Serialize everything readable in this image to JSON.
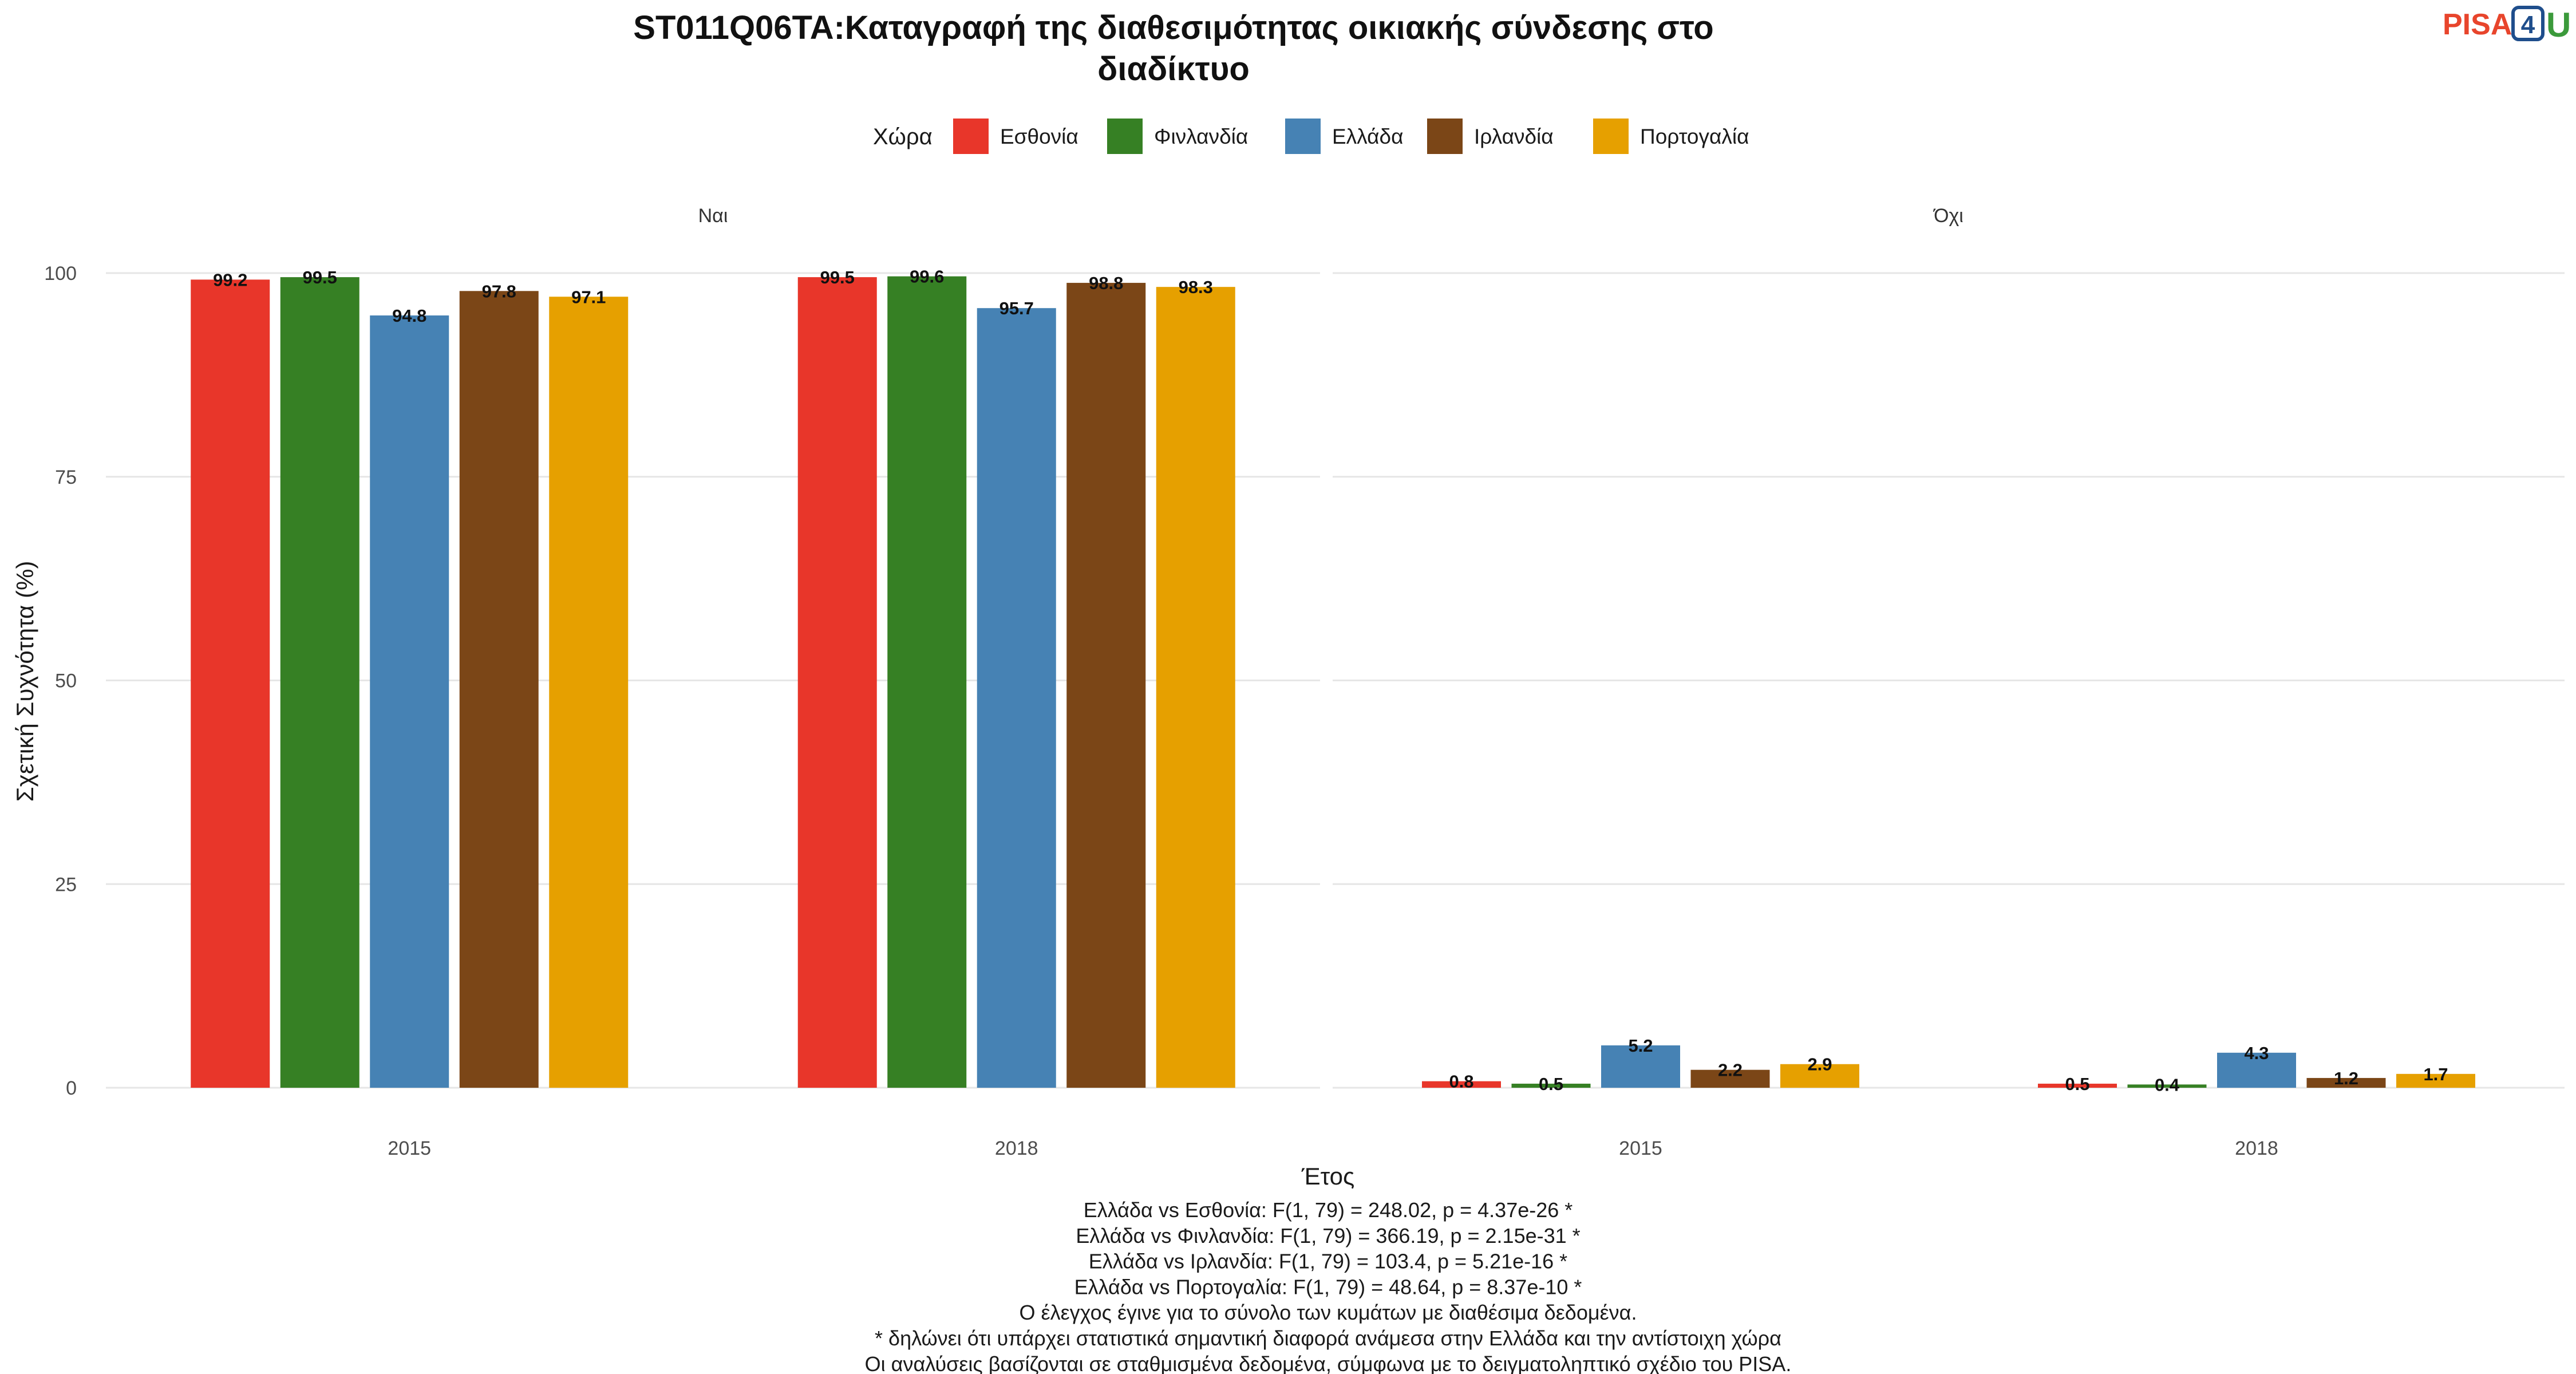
{
  "chart_data": {
    "type": "bar",
    "title_line1": "ST011Q06TA:Καταγραφή της διαθεσιμότητας οικιακής σύνδεσης στο",
    "title_line2": "διαδίκτυο",
    "legend_title": "Χώρα",
    "legend_position": "top",
    "xlabel": "Έτος",
    "ylabel": "Σχετική Συχνότητα (%)",
    "ylim": [
      0,
      100
    ],
    "yticks": [
      "0",
      "25",
      "50",
      "75",
      "100"
    ],
    "grid": true,
    "categories": [
      "2015",
      "2018"
    ],
    "series": [
      {
        "name": "Εσθονία",
        "color": "#e8362a"
      },
      {
        "name": "Φινλανδία",
        "color": "#368024"
      },
      {
        "name": "Ελλάδα",
        "color": "#4682b4"
      },
      {
        "name": "Ιρλανδία",
        "color": "#7b4617"
      },
      {
        "name": "Πορτογαλία",
        "color": "#e6a000"
      }
    ],
    "facets": [
      {
        "label": "Ναι",
        "values": [
          [
            99.2,
            99.5,
            94.8,
            97.8,
            97.1
          ],
          [
            99.5,
            99.6,
            95.7,
            98.8,
            98.3
          ]
        ]
      },
      {
        "label": "Όχι",
        "values": [
          [
            0.8,
            0.5,
            5.2,
            2.2,
            2.9
          ],
          [
            0.5,
            0.4,
            4.3,
            1.2,
            1.7
          ]
        ]
      }
    ]
  },
  "logo": {
    "part1": "PISA",
    "part2": "4",
    "part3": "U"
  },
  "notes": [
    "Ελλάδα vs Εσθονία: F(1, 79) = 248.02, p = 4.37e-26 *",
    "Ελλάδα vs Φινλανδία: F(1, 79) = 366.19, p = 2.15e-31 *",
    "Ελλάδα vs Ιρλανδία: F(1, 79) = 103.4, p = 5.21e-16 *",
    "Ελλάδα vs Πορτογαλία: F(1, 79) = 48.64, p = 8.37e-10 *",
    "Ο έλεγχος έγινε για το σύνολο των κυμάτων με διαθέσιμα δεδομένα.",
    "* δηλώνει ότι υπάρχει στατιστικά σημαντική διαφορά ανάμεσα στην Ελλάδα και την αντίστοιχη χώρα",
    "Οι αναλύσεις βασίζονται σε σταθμισμένα δεδομένα, σύμφωνα με το δειγματοληπτικό σχέδιο του PISA."
  ]
}
